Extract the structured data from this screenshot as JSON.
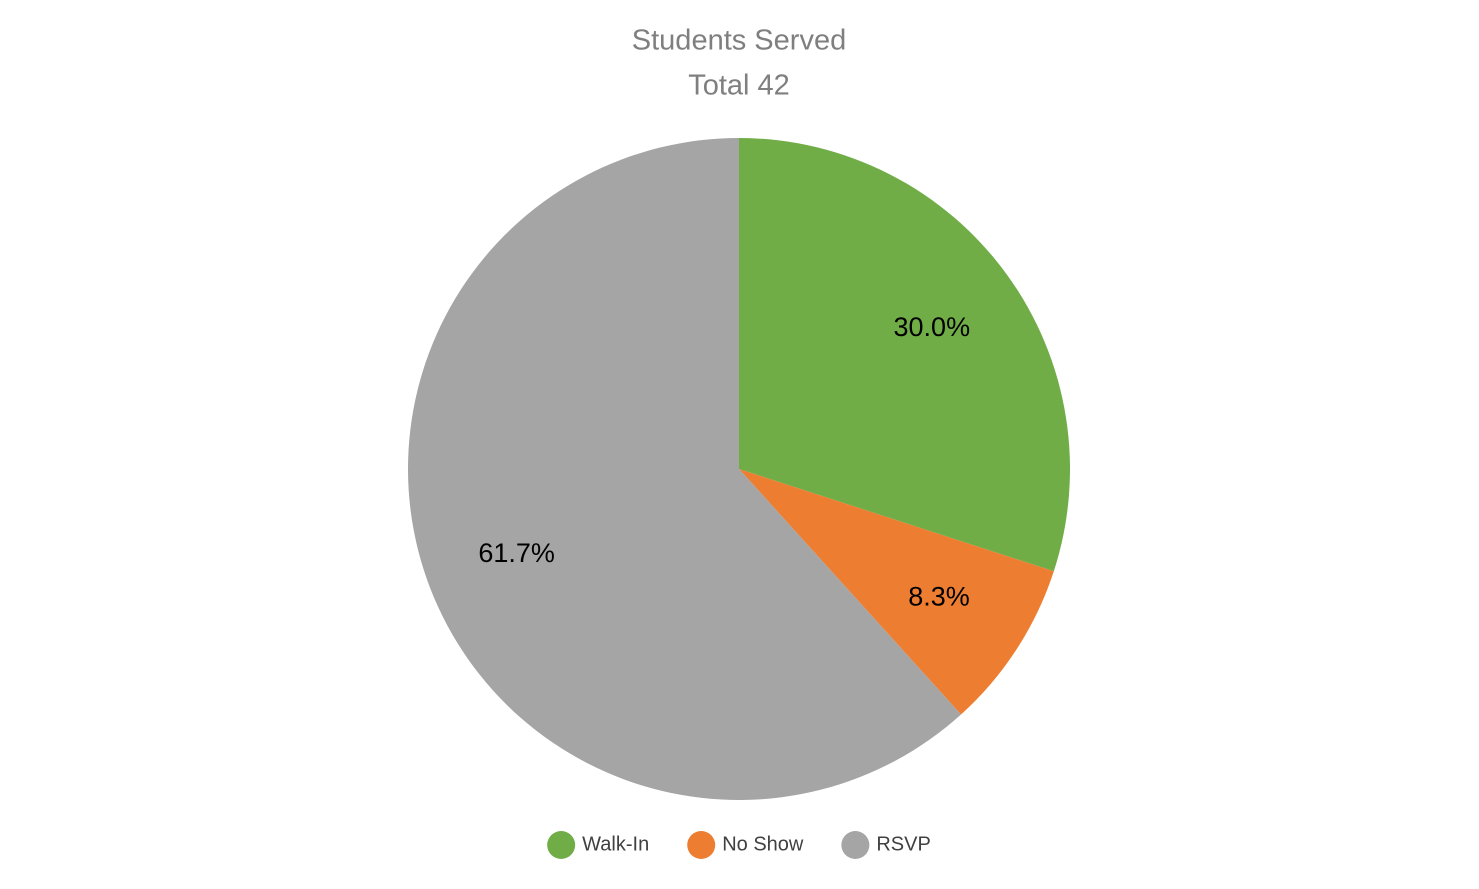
{
  "chart_data": {
    "type": "pie",
    "title": "Students Served",
    "subtitle": "Total 42",
    "categories": [
      "Walk-In",
      "No Show",
      "RSVP"
    ],
    "values": [
      30.0,
      8.3,
      61.7
    ],
    "value_labels": [
      "30.0%",
      "8.3%",
      "61.7%"
    ],
    "colors": [
      "#70ad47",
      "#ed7d31",
      "#a5a5a5"
    ],
    "legend": "bottom"
  }
}
